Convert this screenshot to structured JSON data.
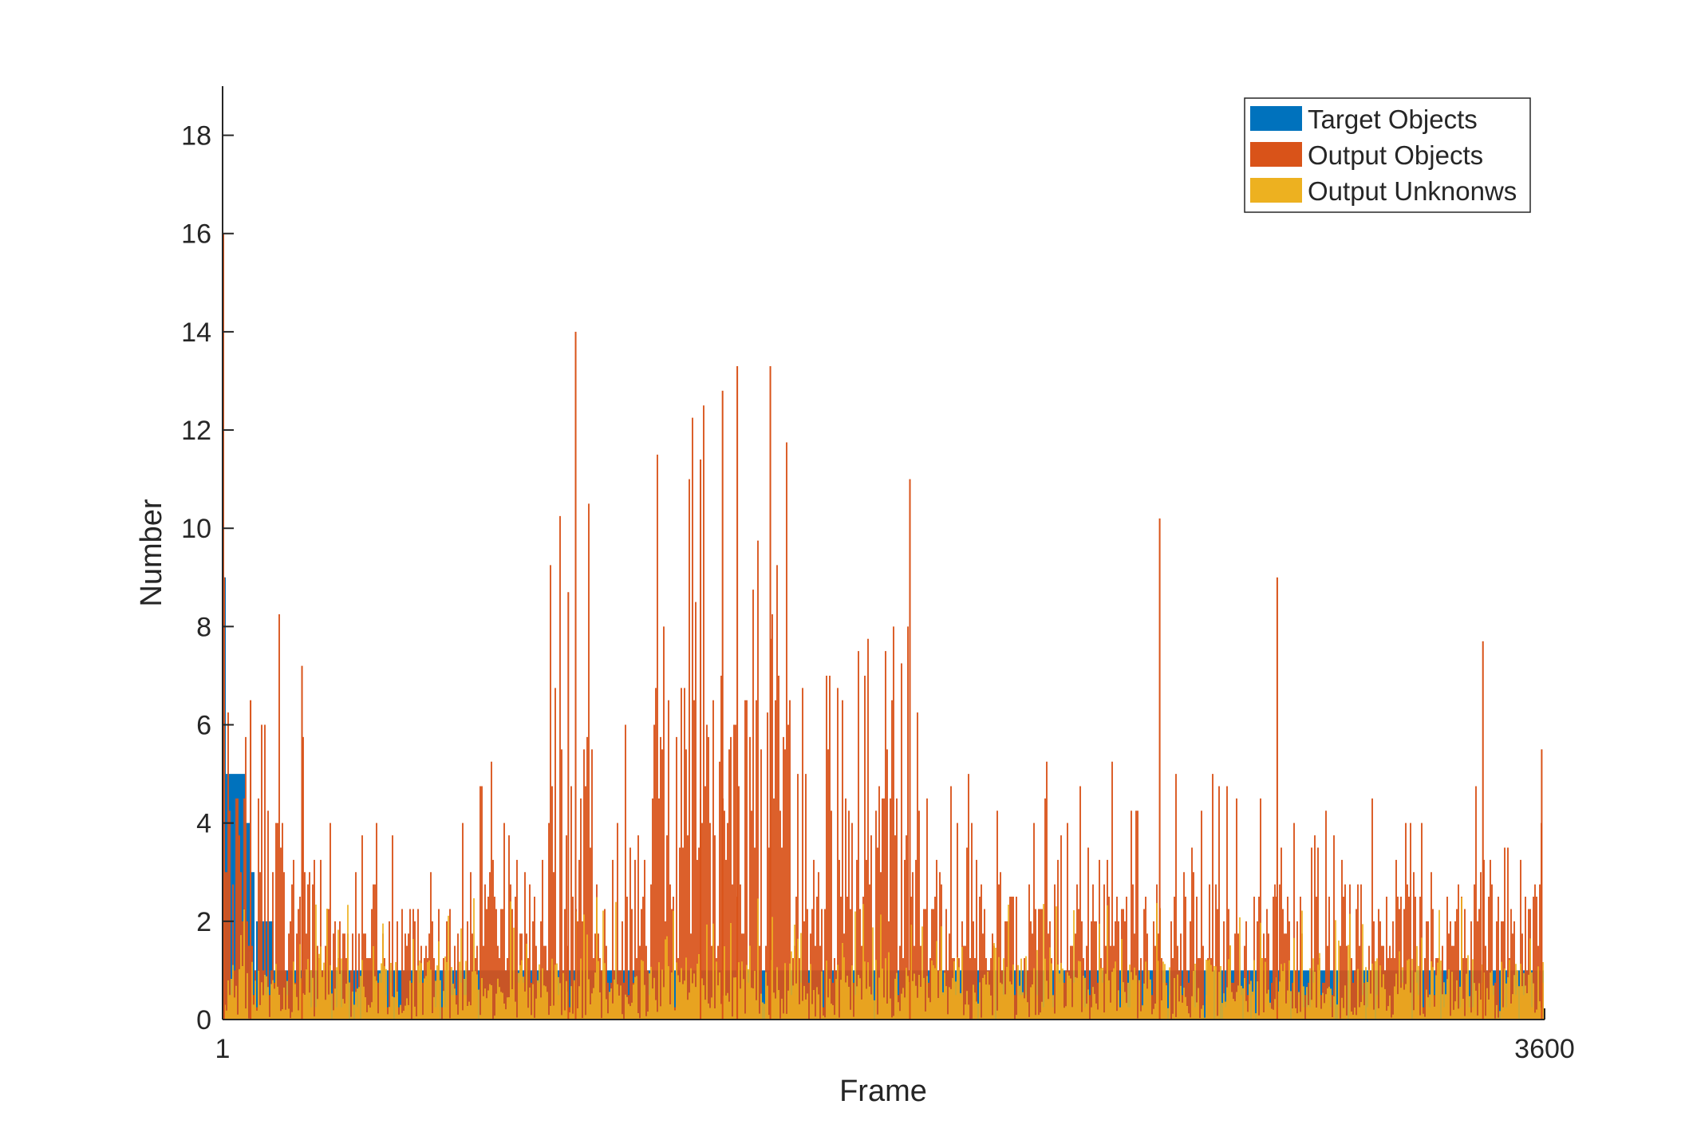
{
  "chart_data": {
    "type": "bar",
    "title": "",
    "xlabel": "Frame",
    "ylabel": "Number",
    "xlim": [
      1,
      3600
    ],
    "ylim": [
      0,
      19
    ],
    "x_ticks": [
      1,
      3600
    ],
    "y_ticks": [
      0,
      2,
      4,
      6,
      8,
      10,
      12,
      14,
      16,
      18
    ],
    "grid": false,
    "legend_position": "top-right",
    "series": [
      {
        "name": "Target Objects",
        "color": "#0072BD",
        "segments": [
          {
            "from": 1,
            "to": 9,
            "value": 9
          },
          {
            "from": 10,
            "to": 60,
            "value": 5
          },
          {
            "from": 61,
            "to": 75,
            "value": 4
          },
          {
            "from": 76,
            "to": 90,
            "value": 3
          },
          {
            "from": 91,
            "to": 140,
            "value": 2
          },
          {
            "from": 141,
            "to": 3600,
            "value": 1
          }
        ]
      },
      {
        "name": "Output Objects",
        "color": "#D95319",
        "peaks": [
          {
            "x": 1,
            "value": 16
          },
          {
            "x": 3,
            "value": 9
          },
          {
            "x": 75,
            "value": 6.5
          },
          {
            "x": 215,
            "value": 7.2
          },
          {
            "x": 960,
            "value": 14
          },
          {
            "x": 940,
            "value": 8.7
          },
          {
            "x": 1300,
            "value": 11.4
          },
          {
            "x": 1360,
            "value": 12.8
          },
          {
            "x": 1400,
            "value": 13.3
          },
          {
            "x": 1490,
            "value": 13.3
          },
          {
            "x": 1870,
            "value": 11
          },
          {
            "x": 2550,
            "value": 10.2
          },
          {
            "x": 2870,
            "value": 9
          },
          {
            "x": 3430,
            "value": 7.7
          },
          {
            "x": 3590,
            "value": 5.5
          }
        ],
        "regional_envelope": [
          {
            "from": 1,
            "to": 170,
            "level": 4
          },
          {
            "from": 170,
            "to": 280,
            "level": 3
          },
          {
            "from": 280,
            "to": 700,
            "level": 2
          },
          {
            "from": 700,
            "to": 880,
            "level": 3
          },
          {
            "from": 880,
            "to": 1000,
            "level": 5
          },
          {
            "from": 1000,
            "to": 1180,
            "level": 3
          },
          {
            "from": 1180,
            "to": 1580,
            "level": 6
          },
          {
            "from": 1580,
            "to": 1900,
            "level": 4
          },
          {
            "from": 1900,
            "to": 3600,
            "level": 2.5
          }
        ]
      },
      {
        "name": "Output Unknonws",
        "color": "#EDB120",
        "typical_range": [
          0,
          2.5
        ]
      }
    ]
  }
}
